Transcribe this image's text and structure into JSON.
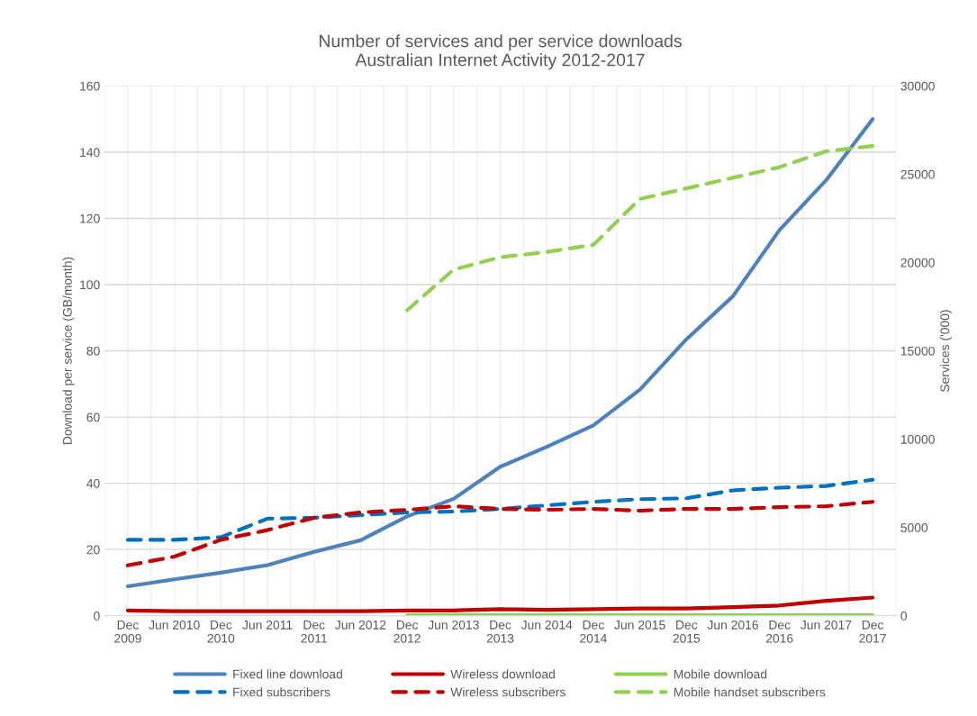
{
  "chart_data": {
    "type": "line",
    "title": "Number of services and per service downloads\nAustralian Internet Activity 2012-2017",
    "ylabel": "Download per service (GB/month)",
    "y2label": "Services ('000)",
    "categories": [
      "Dec\n2009",
      "Jun 2010",
      "Dec\n2010",
      "Jun 2011",
      "Dec\n2011",
      "Jun 2012",
      "Dec\n2012",
      "Jun 2013",
      "Dec\n2013",
      "Jun 2014",
      "Dec\n2014",
      "Jun 2015",
      "Dec\n2015",
      "Jun 2016",
      "Dec\n2016",
      "Jun 2017",
      "Dec\n2017"
    ],
    "ylim": [
      0,
      160
    ],
    "yticks": [
      0,
      20,
      40,
      60,
      80,
      100,
      120,
      140,
      160
    ],
    "y2lim": [
      0,
      30000
    ],
    "y2ticks": [
      0,
      5000,
      10000,
      15000,
      20000,
      25000,
      30000
    ],
    "grid": true,
    "legend": "bottom",
    "marker": "none",
    "series": [
      {
        "name": "Fixed line download",
        "color": "#4f81bd",
        "line_style": "solid",
        "values": [
          8.9,
          11,
          13,
          15.3,
          19.3,
          22.8,
          30,
          35.3,
          45,
          51,
          57.5,
          68.3,
          83.5,
          96.5,
          116.5,
          131.5,
          150
        ]
      },
      {
        "name": "Wireless download",
        "color": "#c00000",
        "line_style": "solid",
        "values": [
          1.6,
          1.4,
          1.4,
          1.4,
          1.4,
          1.4,
          1.6,
          1.6,
          2.0,
          1.8,
          2.0,
          2.2,
          2.2,
          2.6,
          3.1,
          4.5,
          5.5
        ]
      },
      {
        "name": "Mobile download",
        "color": "#92d050",
        "line_style": "solid",
        "values": [
          null,
          null,
          null,
          null,
          null,
          null,
          0.2,
          0.2,
          0.2,
          0.2,
          0.2,
          0.2,
          0.2,
          0.2,
          0.2,
          0.2,
          0.2
        ]
      },
      {
        "name": "Fixed subscribers",
        "color": "#0070c0",
        "line_style": "dashed",
        "axis": "y2",
        "values": [
          4300,
          4300,
          4450,
          5500,
          5550,
          5700,
          5850,
          5900,
          6050,
          6250,
          6450,
          6600,
          6650,
          7100,
          7250,
          7350,
          7700
        ]
      },
      {
        "name": "Wireless subscribers",
        "color": "#c00000",
        "line_style": "dashed",
        "axis": "y2",
        "values": [
          2850,
          3350,
          4300,
          4850,
          5550,
          5850,
          6000,
          6200,
          6050,
          6000,
          6050,
          5950,
          6050,
          6050,
          6150,
          6200,
          6450
        ]
      },
      {
        "name": "Mobile handset subscribers",
        "color": "#92d050",
        "line_style": "dashed",
        "axis": "y2",
        "values": [
          null,
          null,
          null,
          null,
          null,
          null,
          17300,
          19600,
          20300,
          20600,
          21000,
          23600,
          24200,
          24800,
          25400,
          26300,
          26600
        ]
      }
    ]
  }
}
